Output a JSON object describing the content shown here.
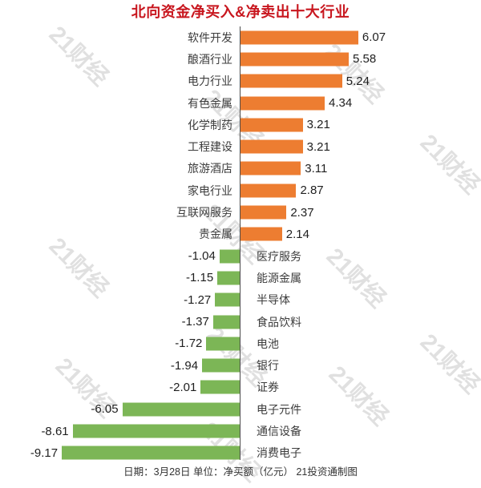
{
  "title": "北向资金净买入&净卖出十大行业",
  "footer": "日期：3月28日 单位：净买额（亿元） 21投资通制图",
  "watermark": {
    "text": "21财经"
  },
  "colors": {
    "title": "#c8161e",
    "bar_positive": "#ED7D31",
    "bar_negative": "#7CB656",
    "axis": "#4d4d4d",
    "category_text": "#3d3d3d",
    "value_text": "#1f1f1f",
    "footer_text": "#333333",
    "watermark_text": "rgba(0,0,0,0.12)"
  },
  "chart_data": {
    "type": "bar",
    "orientation": "horizontal-diverging",
    "title": "北向资金净买入&净卖出十大行业",
    "xlabel": "净买额（亿元）",
    "date": "3月28日",
    "source": "21投资通制图",
    "xlim": [
      -12.4,
      12.4
    ],
    "grid": false,
    "legend": "none",
    "categories": [
      "软件开发",
      "酿酒行业",
      "电力行业",
      "有色金属",
      "化学制药",
      "工程建设",
      "旅游酒店",
      "家电行业",
      "互联网服务",
      "贵金属",
      "医疗服务",
      "能源金属",
      "半导体",
      "食品饮料",
      "电池",
      "银行",
      "证券",
      "电子元件",
      "通信设备",
      "消费电子"
    ],
    "values": [
      6.07,
      5.58,
      5.24,
      4.34,
      3.21,
      3.21,
      3.11,
      2.87,
      2.37,
      2.14,
      -1.04,
      -1.15,
      -1.27,
      -1.37,
      -1.72,
      -1.94,
      -2.01,
      -6.05,
      -8.61,
      -9.17
    ],
    "value_labels": [
      "6.07",
      "5.58",
      "5.24",
      "4.34",
      "3.21",
      "3.21",
      "3.11",
      "2.87",
      "2.37",
      "2.14",
      "-1.04",
      "-1.15",
      "-1.27",
      "-1.37",
      "-1.72",
      "-1.94",
      "-2.01",
      "-6.05",
      "-8.61",
      "-9.17"
    ]
  }
}
